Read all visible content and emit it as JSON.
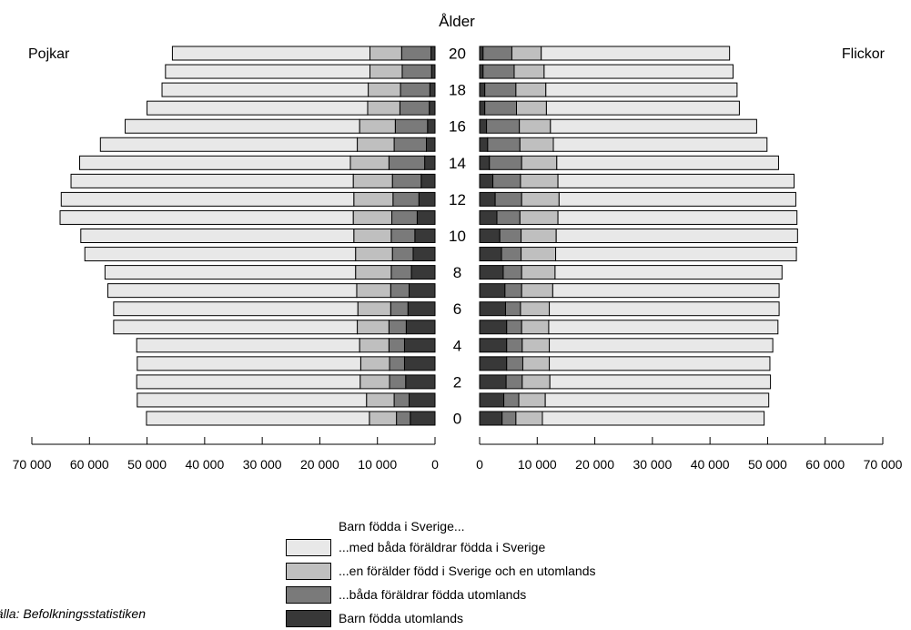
{
  "chart_data": {
    "type": "bar",
    "orientation": "horizontal-population-pyramid",
    "title": "Ålder",
    "left_group": "Pojkar",
    "right_group": "Flickor",
    "ages": [
      20,
      19,
      18,
      17,
      16,
      15,
      14,
      13,
      12,
      11,
      10,
      9,
      8,
      7,
      6,
      5,
      4,
      3,
      2,
      1,
      0
    ],
    "age_tick_labels": [
      "20",
      "18",
      "16",
      "14",
      "12",
      "10",
      "8",
      "6",
      "4",
      "2",
      "0"
    ],
    "x_tick_labels": [
      "70 000",
      "60 000",
      "50 000",
      "40 000",
      "30 000",
      "20 000",
      "10 000",
      "0"
    ],
    "xlim": [
      0,
      70000
    ],
    "legend_title": "Barn födda i Sverige...",
    "series": [
      {
        "name": "Barn födda utomlands",
        "color": "#383838",
        "boys": [
          700,
          600,
          900,
          1000,
          1300,
          1500,
          1800,
          2400,
          2800,
          3100,
          3500,
          3800,
          4100,
          4500,
          4700,
          5000,
          5300,
          5300,
          5100,
          4500,
          4300
        ],
        "girls": [
          600,
          600,
          900,
          900,
          1200,
          1400,
          1700,
          2300,
          2700,
          3000,
          3500,
          3800,
          4100,
          4400,
          4500,
          4700,
          4700,
          4700,
          4600,
          4200,
          3900
        ]
      },
      {
        "name": "...båda föräldrar födda utomlands",
        "color": "#7a7a7a",
        "boys": [
          5100,
          5100,
          5100,
          5100,
          5600,
          5600,
          6200,
          5000,
          4500,
          4400,
          4100,
          3600,
          3500,
          3200,
          3000,
          3000,
          2700,
          2600,
          2800,
          2600,
          2400
        ],
        "girls": [
          5000,
          5400,
          5400,
          5500,
          5700,
          5600,
          5600,
          4800,
          4600,
          4000,
          3700,
          3400,
          3200,
          2900,
          2600,
          2600,
          2700,
          2800,
          2800,
          2600,
          2400
        ]
      },
      {
        "name": "...en förälder född i Sverige och en utomlands",
        "color": "#bfbfbf",
        "boys": [
          5500,
          5600,
          5600,
          5600,
          6200,
          6400,
          6700,
          6800,
          6800,
          6700,
          6500,
          6400,
          6200,
          5900,
          5700,
          5500,
          5100,
          5000,
          5100,
          4800,
          4700
        ],
        "girls": [
          5100,
          5200,
          5200,
          5200,
          5400,
          5800,
          6100,
          6500,
          6500,
          6600,
          6100,
          6000,
          5800,
          5400,
          5000,
          4700,
          4700,
          4600,
          4800,
          4600,
          4600
        ]
      },
      {
        "name": "...med båda föräldrar födda i Sverige",
        "color": "#e8e8e8",
        "boys": [
          34300,
          35500,
          35800,
          38300,
          40700,
          44600,
          47000,
          49000,
          50800,
          50900,
          47400,
          47000,
          43500,
          43200,
          42400,
          42300,
          38700,
          38800,
          38800,
          39800,
          38700
        ],
        "girls": [
          32700,
          32800,
          33200,
          33500,
          35800,
          37100,
          38500,
          41000,
          41100,
          41500,
          41900,
          41800,
          39400,
          39300,
          39900,
          39800,
          38800,
          38300,
          38300,
          38800,
          38500
        ]
      }
    ]
  },
  "legend": {
    "title": "Barn födda i Sverige...",
    "items": [
      {
        "label": "...med båda föräldrar födda i Sverige",
        "color": "#e8e8e8"
      },
      {
        "label": "...en förälder född i Sverige och en utomlands",
        "color": "#bfbfbf"
      },
      {
        "label": "...båda föräldrar födda utomlands",
        "color": "#7a7a7a"
      },
      {
        "label": "Barn födda utomlands",
        "color": "#383838"
      }
    ]
  },
  "source": "Källa: Befolkningsstatistiken"
}
